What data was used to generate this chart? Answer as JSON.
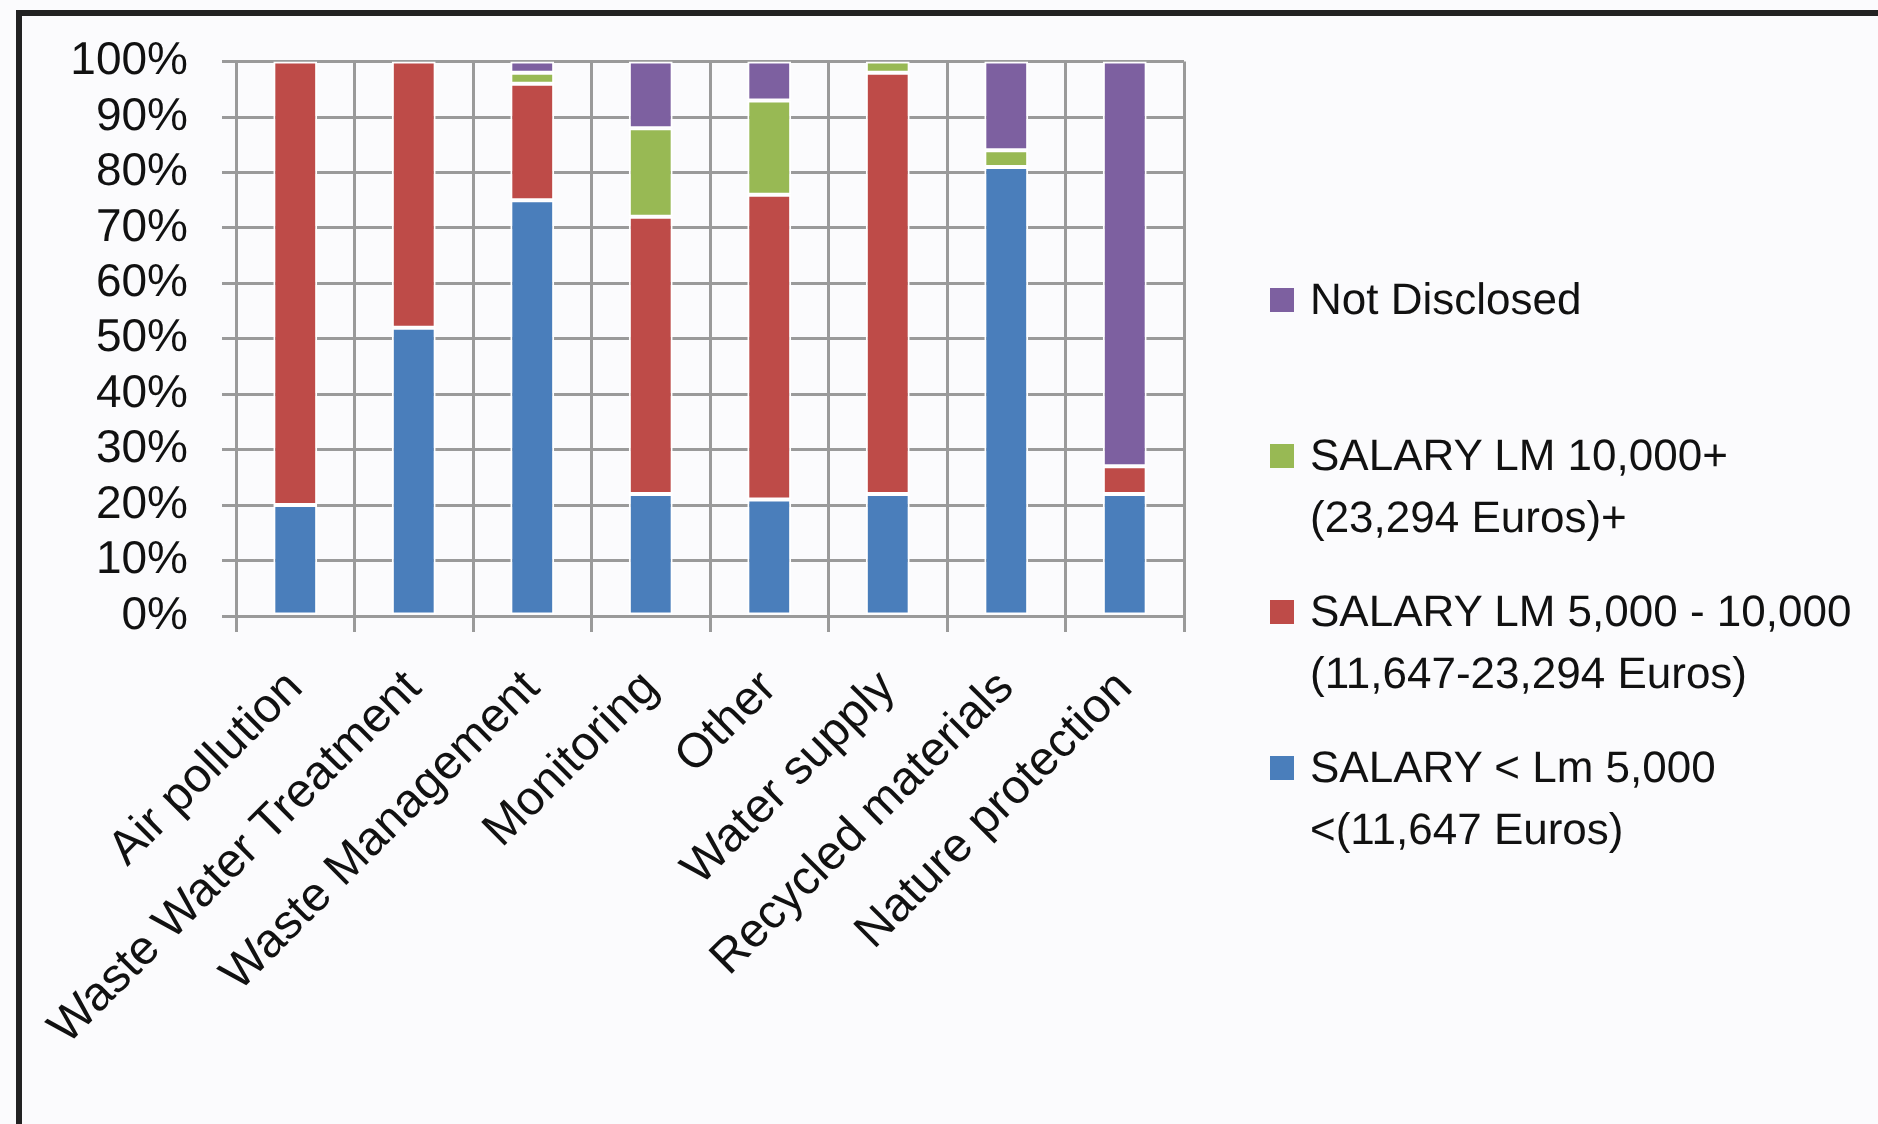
{
  "chart_data": {
    "type": "bar",
    "stacked": true,
    "categories": [
      "Air pollution",
      "Waste Water Treatment",
      "Waste Management",
      "Monitoring",
      "Other",
      "Water supply",
      "Recycled materials",
      "Nature protection"
    ],
    "series": [
      {
        "name": "SALARY < Lm 5,000 <(11,647 Euros)",
        "color": "#4a7ebb",
        "values": [
          20,
          52,
          75,
          22,
          21,
          22,
          81,
          22
        ]
      },
      {
        "name": "SALARY LM 5,000 - 10,000 (11,647-23,294 Euros)",
        "color": "#be4b48",
        "values": [
          80,
          48,
          21,
          50,
          55,
          76,
          0,
          5
        ]
      },
      {
        "name": "SALARY LM 10,000+ (23,294 Euros)+",
        "color": "#98b954",
        "values": [
          0,
          0,
          2,
          16,
          17,
          2,
          3,
          0
        ]
      },
      {
        "name": "Not Disclosed",
        "color": "#7d60a0",
        "values": [
          0,
          0,
          2,
          12,
          7,
          0,
          16,
          73
        ]
      }
    ],
    "ylim": [
      0,
      100
    ],
    "yticks": [
      {
        "value": 0,
        "label": "0%"
      },
      {
        "value": 10,
        "label": "10%"
      },
      {
        "value": 20,
        "label": "20%"
      },
      {
        "value": 30,
        "label": "30%"
      },
      {
        "value": 40,
        "label": "40%"
      },
      {
        "value": 50,
        "label": "50%"
      },
      {
        "value": 60,
        "label": "60%"
      },
      {
        "value": 70,
        "label": "70%"
      },
      {
        "value": 80,
        "label": "80%"
      },
      {
        "value": 90,
        "label": "90%"
      },
      {
        "value": 100,
        "label": "100%"
      }
    ],
    "grid": true,
    "legend": "right"
  }
}
